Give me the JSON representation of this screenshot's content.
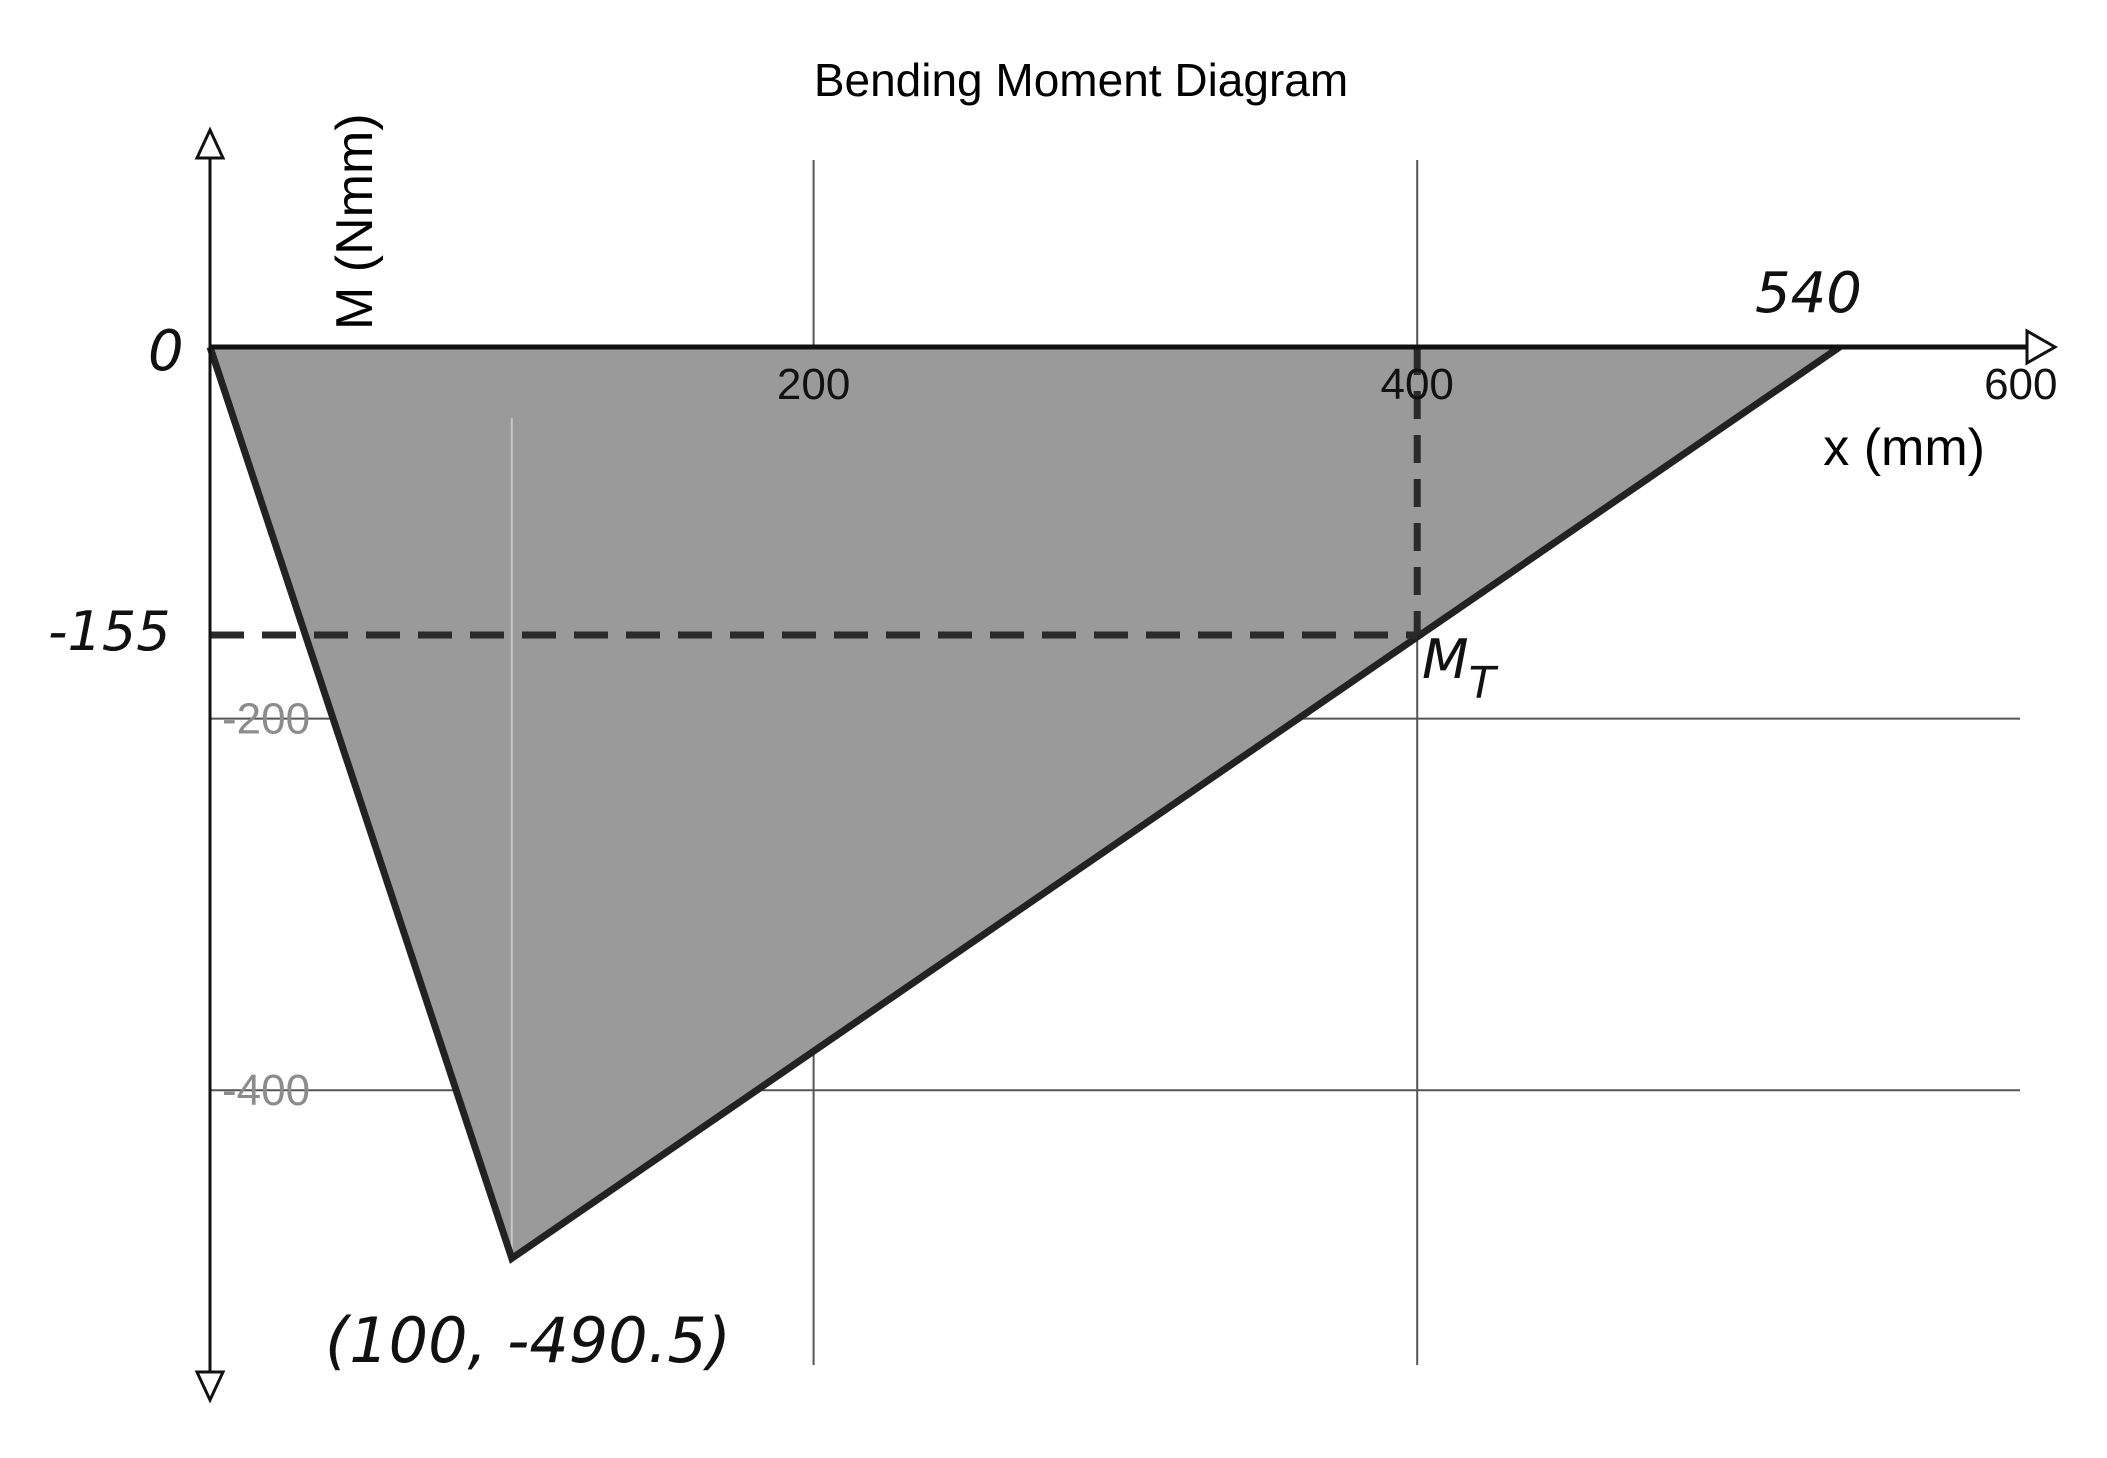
{
  "chart_data": {
    "type": "area",
    "title": "Bending Moment Diagram",
    "xlabel": "x (mm)",
    "ylabel": "M (Nmm)",
    "xlim": [
      0,
      600
    ],
    "ylim": [
      -565,
      220
    ],
    "x_ticks": [
      200,
      400,
      600
    ],
    "y_ticks": [
      -200,
      -400
    ],
    "grid": true,
    "series": [
      {
        "x": [
          0,
          100,
          540
        ],
        "y": [
          0,
          -490.5,
          0
        ]
      }
    ],
    "fill_color": "#9a9a9a",
    "line_color": "#222222",
    "guides": {
      "x": 400,
      "y": -155
    },
    "annotations": {
      "origin": "0",
      "y_guide": "-155",
      "x_end": "540",
      "point_label": "M",
      "point_subscript": "T",
      "peak": "(100, -490.5)"
    }
  }
}
